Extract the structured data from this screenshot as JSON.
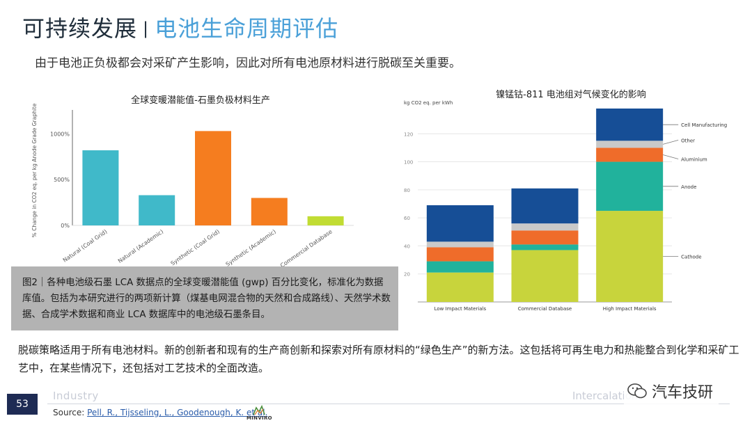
{
  "header": {
    "title_main": "可持续发展",
    "title_sep": "|",
    "title_sub": "电池生命周期评估",
    "subtitle": "由于电池正负极都会对采矿产生影响，因此对所有电池原材料进行脱碳至关重要。"
  },
  "chart_data": [
    {
      "type": "bar",
      "title": "全球变暖潜能值-石墨负极材料生产",
      "ylabel": "% Change in CO2 eq. per kg Anode Grade Graphite",
      "categories": [
        "Natural (Coal Grid)",
        "Natural (Academic)",
        "Synthetic (Coal Grid)",
        "Synthetic (Academic)",
        "Commercial Database"
      ],
      "values": [
        820,
        330,
        1030,
        300,
        100
      ],
      "colors": [
        "#40b9c9",
        "#40b9c9",
        "#f57d1f",
        "#f57d1f",
        "#c1dc33"
      ],
      "yticks": [
        "0%",
        "500%",
        "1000%"
      ],
      "ylim": [
        0,
        1200
      ]
    },
    {
      "type": "bar",
      "title": "镍锰钴-811 电池组对气候变化的影响",
      "ylabel": "kg CO2 eq. per kWh",
      "categories": [
        "Low Impact Materials",
        "Commercial Database",
        "High Impact Materials"
      ],
      "stacked": true,
      "series": [
        {
          "name": "Cathode",
          "color": "#c8d43c",
          "values": [
            21,
            37,
            65
          ]
        },
        {
          "name": "Anode",
          "color": "#21b29c",
          "values": [
            8,
            4,
            35
          ]
        },
        {
          "name": "Aluminium",
          "color": "#ef6c2a",
          "values": [
            10,
            10,
            10
          ]
        },
        {
          "name": "Other",
          "color": "#c9c9c9",
          "values": [
            4,
            5,
            5
          ]
        },
        {
          "name": "Cell Manufacturing",
          "color": "#164e96",
          "values": [
            26,
            25,
            23
          ]
        }
      ],
      "yticks": [
        "20",
        "40",
        "60",
        "80",
        "100",
        "120"
      ],
      "ylim": [
        0,
        138
      ]
    }
  ],
  "caption": "图2｜各种电池级石墨 LCA 数据点的全球变暖潜能值 (gwp) 百分比变化，标准化为数据库值。包括为本研究进行的两项新计算（煤基电网混合物的天然和合成路线）、天然学术数据、合成学术数据和商业 LCA 数据库中的电池级石墨条目。",
  "body_text": "脱碳策略适用于所有电池材料。新的创新者和现有的生产商创新和探索对所有原材料的“绿色生产”的新方法。这包括将可再生电力和热能整合到化学和采矿工艺中，在某些情况下，还包括对工艺技术的全面改造。",
  "footer": {
    "page_number": "53",
    "section": "Industry",
    "right_text": "Intercalation",
    "source_label": "Source:",
    "source_link": "Pell, R., Tijsseling, L., Goodenough, K. et al.",
    "logo_text": "MINVIRO"
  },
  "watermark": {
    "text": "汽车技研",
    "icon": "wechat-icon"
  }
}
